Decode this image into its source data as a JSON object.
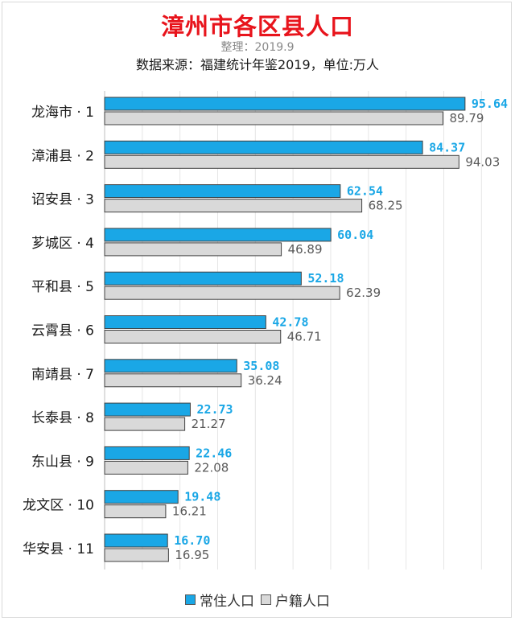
{
  "title": "漳州市各区县人口",
  "subtitle": "整理：2019.9",
  "source": "数据来源：福建统计年鉴2019，单位:万人",
  "colors": {
    "resident": "#1aa7e6",
    "registered": "#d9d9d9",
    "resident_label": "#1aa7e6",
    "registered_label": "#595959",
    "bar_border": "#404040"
  },
  "chart_data": {
    "type": "bar",
    "orientation": "horizontal",
    "categories": [
      "龙海市 · 1",
      "漳浦县 · 2",
      "诏安县 · 3",
      "芗城区 · 4",
      "平和县 · 5",
      "云霄县 · 6",
      "南靖县 · 7",
      "长泰县 · 8",
      "东山县 · 9",
      "龙文区 · 10",
      "华安县 · 11"
    ],
    "series": [
      {
        "name": "常住人口",
        "values": [
          95.64,
          84.37,
          62.54,
          60.04,
          52.18,
          42.78,
          35.08,
          22.73,
          22.46,
          19.48,
          16.7
        ],
        "labels": [
          "95.64",
          "84.37",
          "62.54",
          "60.04",
          "52.18",
          "42.78",
          "35.08",
          "22.73",
          "22.46",
          "19.48",
          "16.70"
        ]
      },
      {
        "name": "户籍人口",
        "values": [
          89.79,
          94.03,
          68.25,
          46.89,
          62.39,
          46.71,
          36.24,
          21.27,
          22.08,
          16.21,
          16.95
        ],
        "labels": [
          "89.79",
          "94.03",
          "68.25",
          "46.89",
          "62.39",
          "46.71",
          "36.24",
          "21.27",
          "22.08",
          "16.21",
          "16.95"
        ]
      }
    ],
    "xlim": [
      0,
      100
    ],
    "grid": "vertical",
    "legend": "bottom"
  },
  "legend": {
    "items": [
      {
        "label": "常住人口"
      },
      {
        "label": "户籍人口"
      }
    ]
  }
}
